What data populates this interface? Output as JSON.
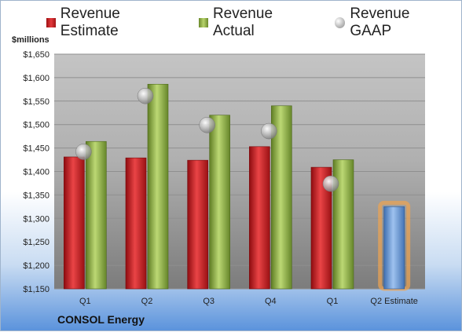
{
  "company": "CONSOL Energy",
  "unit_label": "$millions",
  "colors": {
    "estimate": "#d42a2d",
    "actual": "#9cbf4f",
    "gaap": "#b9b9b9",
    "forecast_bar": "#6f9fd6",
    "forecast_glow": "#f0a450"
  },
  "chart_data": {
    "type": "bar",
    "categories": [
      "Q1",
      "Q2",
      "Q3",
      "Q4",
      "Q1",
      "Q2 Estimate"
    ],
    "ylim": [
      1150,
      1650
    ],
    "yticks": [
      "$1,150",
      "$1,200",
      "$1,250",
      "$1,300",
      "$1,350",
      "$1,400",
      "$1,450",
      "$1,500",
      "$1,550",
      "$1,600",
      "$1,650"
    ],
    "ytick_values": [
      1150,
      1200,
      1250,
      1300,
      1350,
      1400,
      1450,
      1500,
      1550,
      1600,
      1650
    ],
    "series": [
      {
        "name": "Revenue Estimate",
        "values": [
          1431,
          1429,
          1424,
          1453,
          1409,
          1325
        ]
      },
      {
        "name": "Revenue Actual",
        "values": [
          1464,
          1586,
          1520,
          1540,
          1425,
          null
        ]
      },
      {
        "name": "Revenue GAAP",
        "values": [
          1442,
          1561,
          1499,
          1486,
          1374,
          null
        ]
      }
    ],
    "grid": true,
    "legend": "top"
  }
}
